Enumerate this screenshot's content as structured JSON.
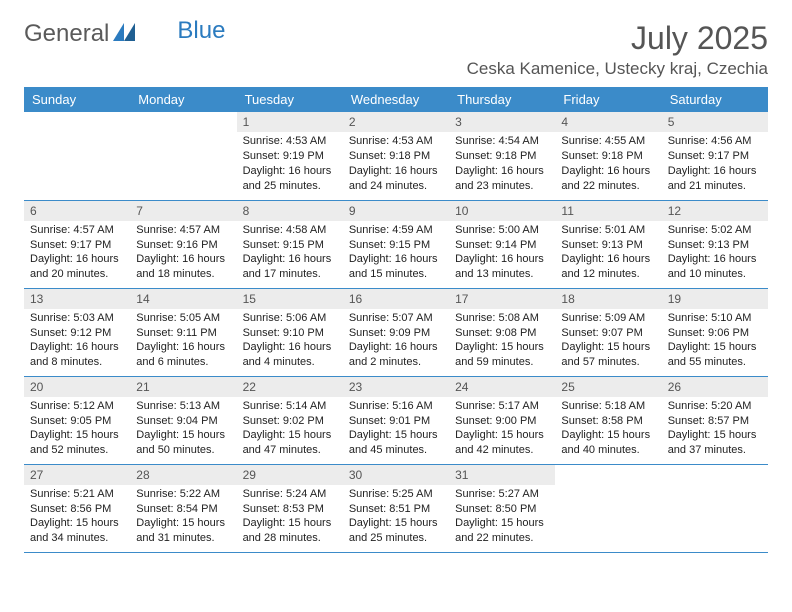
{
  "logo": {
    "general": "General",
    "blue": "Blue"
  },
  "title": "July 2025",
  "location": "Ceska Kamenice, Ustecky kraj, Czechia",
  "colors": {
    "header_bg": "#3b8bc9",
    "header_text": "#ffffff",
    "daynum_bg": "#ececec",
    "border": "#3b8bc9",
    "logo_gray": "#5a5a5a",
    "logo_blue": "#2b7bbf"
  },
  "weekdays": [
    "Sunday",
    "Monday",
    "Tuesday",
    "Wednesday",
    "Thursday",
    "Friday",
    "Saturday"
  ],
  "weeks": [
    [
      {
        "empty": true
      },
      {
        "empty": true
      },
      {
        "num": "1",
        "sunrise": "Sunrise: 4:53 AM",
        "sunset": "Sunset: 9:19 PM",
        "daylight": "Daylight: 16 hours and 25 minutes."
      },
      {
        "num": "2",
        "sunrise": "Sunrise: 4:53 AM",
        "sunset": "Sunset: 9:18 PM",
        "daylight": "Daylight: 16 hours and 24 minutes."
      },
      {
        "num": "3",
        "sunrise": "Sunrise: 4:54 AM",
        "sunset": "Sunset: 9:18 PM",
        "daylight": "Daylight: 16 hours and 23 minutes."
      },
      {
        "num": "4",
        "sunrise": "Sunrise: 4:55 AM",
        "sunset": "Sunset: 9:18 PM",
        "daylight": "Daylight: 16 hours and 22 minutes."
      },
      {
        "num": "5",
        "sunrise": "Sunrise: 4:56 AM",
        "sunset": "Sunset: 9:17 PM",
        "daylight": "Daylight: 16 hours and 21 minutes."
      }
    ],
    [
      {
        "num": "6",
        "sunrise": "Sunrise: 4:57 AM",
        "sunset": "Sunset: 9:17 PM",
        "daylight": "Daylight: 16 hours and 20 minutes."
      },
      {
        "num": "7",
        "sunrise": "Sunrise: 4:57 AM",
        "sunset": "Sunset: 9:16 PM",
        "daylight": "Daylight: 16 hours and 18 minutes."
      },
      {
        "num": "8",
        "sunrise": "Sunrise: 4:58 AM",
        "sunset": "Sunset: 9:15 PM",
        "daylight": "Daylight: 16 hours and 17 minutes."
      },
      {
        "num": "9",
        "sunrise": "Sunrise: 4:59 AM",
        "sunset": "Sunset: 9:15 PM",
        "daylight": "Daylight: 16 hours and 15 minutes."
      },
      {
        "num": "10",
        "sunrise": "Sunrise: 5:00 AM",
        "sunset": "Sunset: 9:14 PM",
        "daylight": "Daylight: 16 hours and 13 minutes."
      },
      {
        "num": "11",
        "sunrise": "Sunrise: 5:01 AM",
        "sunset": "Sunset: 9:13 PM",
        "daylight": "Daylight: 16 hours and 12 minutes."
      },
      {
        "num": "12",
        "sunrise": "Sunrise: 5:02 AM",
        "sunset": "Sunset: 9:13 PM",
        "daylight": "Daylight: 16 hours and 10 minutes."
      }
    ],
    [
      {
        "num": "13",
        "sunrise": "Sunrise: 5:03 AM",
        "sunset": "Sunset: 9:12 PM",
        "daylight": "Daylight: 16 hours and 8 minutes."
      },
      {
        "num": "14",
        "sunrise": "Sunrise: 5:05 AM",
        "sunset": "Sunset: 9:11 PM",
        "daylight": "Daylight: 16 hours and 6 minutes."
      },
      {
        "num": "15",
        "sunrise": "Sunrise: 5:06 AM",
        "sunset": "Sunset: 9:10 PM",
        "daylight": "Daylight: 16 hours and 4 minutes."
      },
      {
        "num": "16",
        "sunrise": "Sunrise: 5:07 AM",
        "sunset": "Sunset: 9:09 PM",
        "daylight": "Daylight: 16 hours and 2 minutes."
      },
      {
        "num": "17",
        "sunrise": "Sunrise: 5:08 AM",
        "sunset": "Sunset: 9:08 PM",
        "daylight": "Daylight: 15 hours and 59 minutes."
      },
      {
        "num": "18",
        "sunrise": "Sunrise: 5:09 AM",
        "sunset": "Sunset: 9:07 PM",
        "daylight": "Daylight: 15 hours and 57 minutes."
      },
      {
        "num": "19",
        "sunrise": "Sunrise: 5:10 AM",
        "sunset": "Sunset: 9:06 PM",
        "daylight": "Daylight: 15 hours and 55 minutes."
      }
    ],
    [
      {
        "num": "20",
        "sunrise": "Sunrise: 5:12 AM",
        "sunset": "Sunset: 9:05 PM",
        "daylight": "Daylight: 15 hours and 52 minutes."
      },
      {
        "num": "21",
        "sunrise": "Sunrise: 5:13 AM",
        "sunset": "Sunset: 9:04 PM",
        "daylight": "Daylight: 15 hours and 50 minutes."
      },
      {
        "num": "22",
        "sunrise": "Sunrise: 5:14 AM",
        "sunset": "Sunset: 9:02 PM",
        "daylight": "Daylight: 15 hours and 47 minutes."
      },
      {
        "num": "23",
        "sunrise": "Sunrise: 5:16 AM",
        "sunset": "Sunset: 9:01 PM",
        "daylight": "Daylight: 15 hours and 45 minutes."
      },
      {
        "num": "24",
        "sunrise": "Sunrise: 5:17 AM",
        "sunset": "Sunset: 9:00 PM",
        "daylight": "Daylight: 15 hours and 42 minutes."
      },
      {
        "num": "25",
        "sunrise": "Sunrise: 5:18 AM",
        "sunset": "Sunset: 8:58 PM",
        "daylight": "Daylight: 15 hours and 40 minutes."
      },
      {
        "num": "26",
        "sunrise": "Sunrise: 5:20 AM",
        "sunset": "Sunset: 8:57 PM",
        "daylight": "Daylight: 15 hours and 37 minutes."
      }
    ],
    [
      {
        "num": "27",
        "sunrise": "Sunrise: 5:21 AM",
        "sunset": "Sunset: 8:56 PM",
        "daylight": "Daylight: 15 hours and 34 minutes."
      },
      {
        "num": "28",
        "sunrise": "Sunrise: 5:22 AM",
        "sunset": "Sunset: 8:54 PM",
        "daylight": "Daylight: 15 hours and 31 minutes."
      },
      {
        "num": "29",
        "sunrise": "Sunrise: 5:24 AM",
        "sunset": "Sunset: 8:53 PM",
        "daylight": "Daylight: 15 hours and 28 minutes."
      },
      {
        "num": "30",
        "sunrise": "Sunrise: 5:25 AM",
        "sunset": "Sunset: 8:51 PM",
        "daylight": "Daylight: 15 hours and 25 minutes."
      },
      {
        "num": "31",
        "sunrise": "Sunrise: 5:27 AM",
        "sunset": "Sunset: 8:50 PM",
        "daylight": "Daylight: 15 hours and 22 minutes."
      },
      {
        "empty": true
      },
      {
        "empty": true
      }
    ]
  ]
}
